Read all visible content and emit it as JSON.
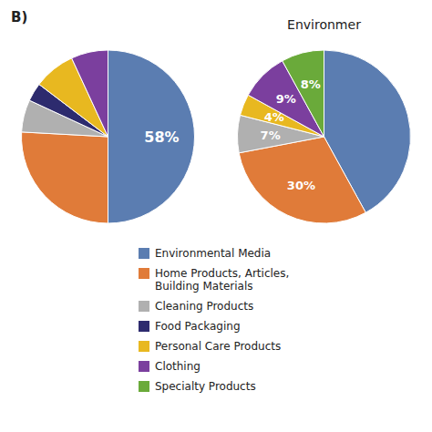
{
  "chart_data": [
    {
      "type": "pie",
      "categories": [
        "Environmental Media",
        "Home Products, Articles,\nBuilding Materials",
        "Cleaning Products",
        "Food Packaging",
        "Personal Care Products",
        "Clothing"
      ],
      "values": [
        58,
        30,
        7,
        4,
        9,
        8
      ],
      "colors": [
        "#5b7db1",
        "#e07b39",
        "#b0b0b0",
        "#2d2b6e",
        "#e8b820",
        "#7b3f9e"
      ],
      "data_labels": true,
      "value_labels": [
        "58%",
        null,
        null,
        null,
        null,
        null
      ],
      "annotations": [
        "B)"
      ],
      "legend": "bottom"
    },
    {
      "type": "pie",
      "title": "Environmer",
      "categories": [
        "Environmental Media",
        "Home Products, Articles,\nBuilding Materials",
        "Cleaning Products",
        "Personal Care Products",
        "Clothing",
        "Specialty Products"
      ],
      "values": [
        42,
        30,
        7,
        4,
        9,
        8
      ],
      "colors": [
        "#5b7db1",
        "#e07b39",
        "#b0b0b0",
        "#e8b820",
        "#7b3f9e",
        "#6aaa3a"
      ],
      "data_labels": true,
      "value_labels": [
        null,
        "30%",
        "7%",
        "4%",
        "9%",
        "8%"
      ]
    }
  ]
}
